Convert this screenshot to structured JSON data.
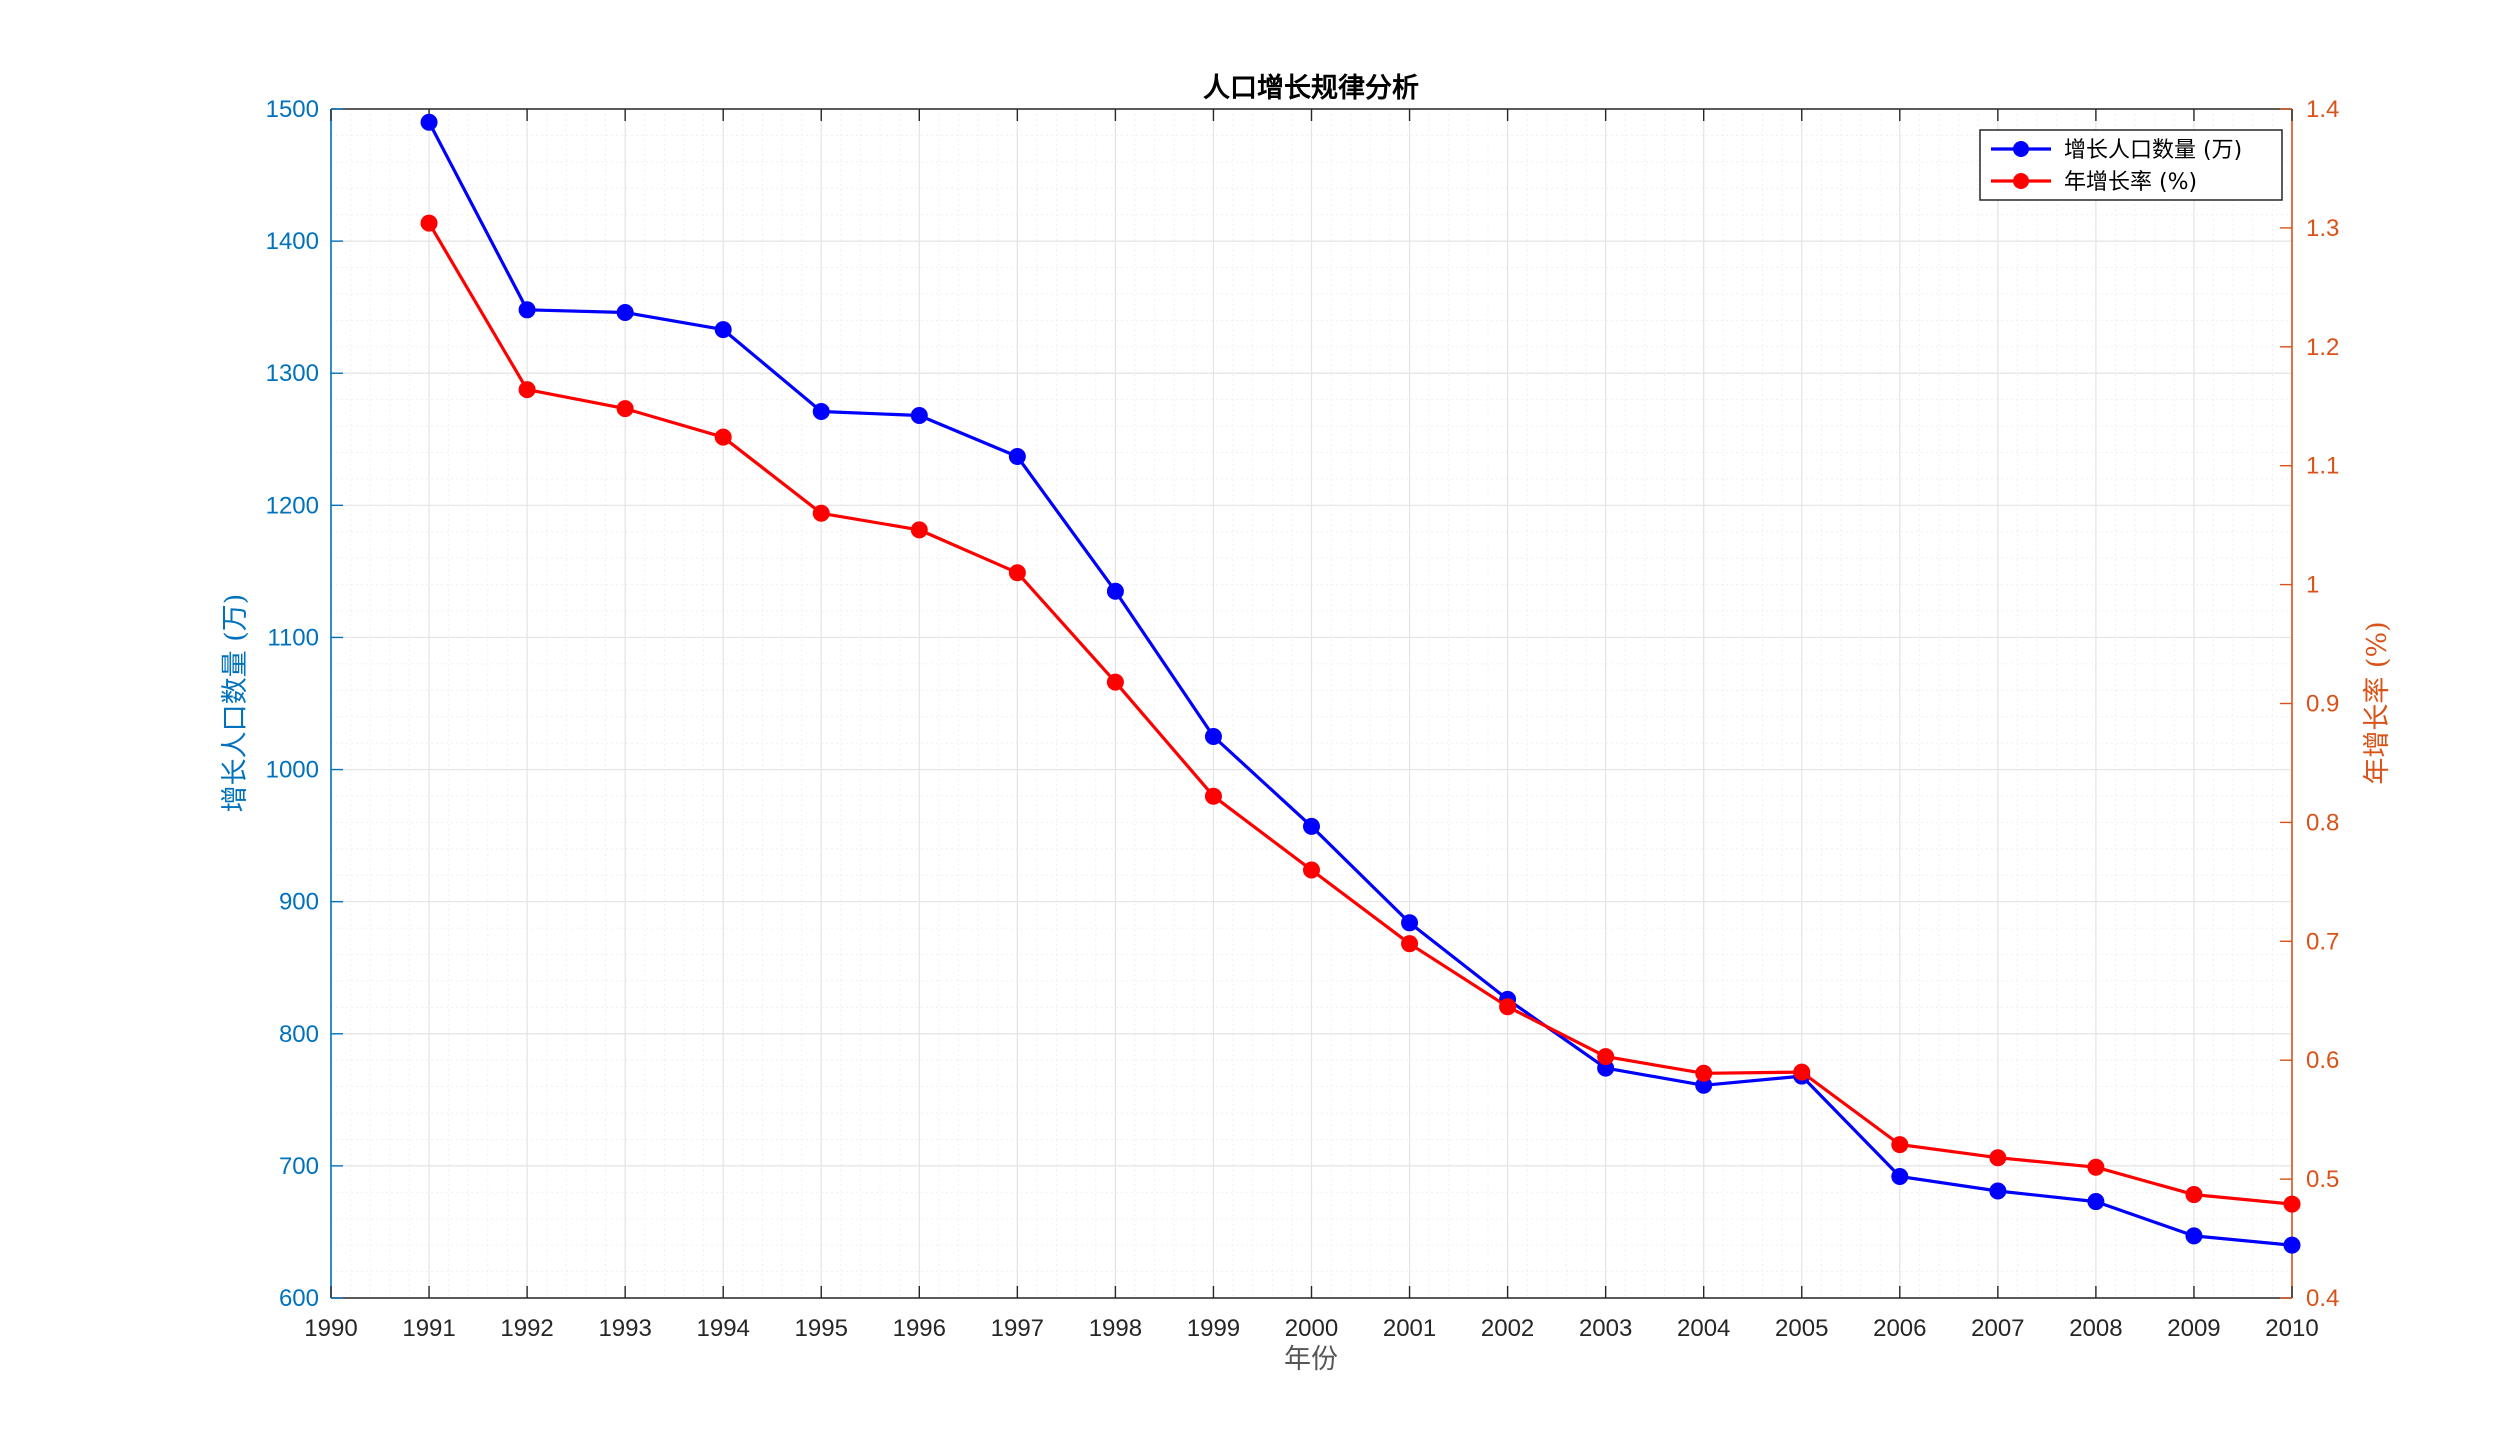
{
  "chart_data": {
    "type": "line",
    "title": "人口增长规律分析",
    "xlabel": "年份",
    "ylabel_left": "增长人口数量 (万)",
    "ylabel_right": "年增长率 (%)",
    "xlim": [
      1990,
      2010
    ],
    "ylim_left": [
      600,
      1500
    ],
    "ylim_right": [
      0.4,
      1.4
    ],
    "x_ticks": [
      "1990",
      "1991",
      "1992",
      "1993",
      "1994",
      "1995",
      "1996",
      "1997",
      "1998",
      "1999",
      "2000",
      "2001",
      "2002",
      "2003",
      "2004",
      "2005",
      "2006",
      "2007",
      "2008",
      "2009",
      "2010"
    ],
    "y_left_ticks": [
      "600",
      "700",
      "800",
      "900",
      "1000",
      "1100",
      "1200",
      "1300",
      "1400",
      "1500"
    ],
    "y_right_ticks": [
      "0.4",
      "0.5",
      "0.6",
      "0.7",
      "0.8",
      "0.9",
      "1",
      "1.1",
      "1.2",
      "1.3",
      "1.4"
    ],
    "grid": true,
    "legend_position": "top-right",
    "x": [
      1991,
      1992,
      1993,
      1994,
      1995,
      1996,
      1997,
      1998,
      1999,
      2000,
      2001,
      2002,
      2003,
      2004,
      2005,
      2006,
      2007,
      2008,
      2009,
      2010
    ],
    "series": [
      {
        "name": "增长人口数量 (万)",
        "axis": "left",
        "color": "#0000ff",
        "values": [
          1490,
          1348,
          1346,
          1333,
          1271,
          1268,
          1237,
          1135,
          1025,
          957,
          884,
          826,
          774,
          761,
          768,
          692,
          681,
          673,
          647,
          640
        ]
      },
      {
        "name": "年增长率 (%)",
        "axis": "right",
        "color": "#ff0000",
        "values": [
          1.304,
          1.164,
          1.148,
          1.124,
          1.06,
          1.046,
          1.01,
          0.918,
          0.822,
          0.76,
          0.698,
          0.645,
          0.603,
          0.589,
          0.59,
          0.529,
          0.518,
          0.51,
          0.487,
          0.479
        ]
      }
    ]
  },
  "colors": {
    "left_axis": "#0072bd",
    "right_axis": "#d95319",
    "axis_black": "#262626",
    "grid": "#e4e4e4",
    "grid_minor": "#f1f1f1"
  }
}
